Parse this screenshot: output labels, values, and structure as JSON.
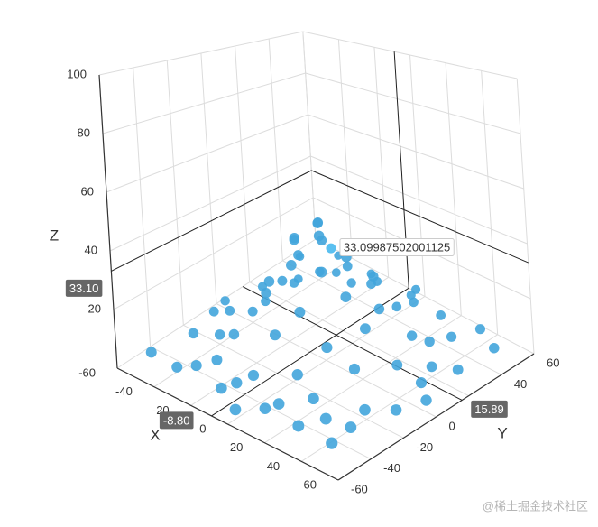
{
  "chart_data": {
    "type": "scatter3D",
    "xlabel": "X",
    "ylabel": "Y",
    "zlabel": "Z",
    "xlim": [
      -60,
      60
    ],
    "ylim": [
      -60,
      60
    ],
    "zlim": [
      0,
      100
    ],
    "xticks": [
      -60,
      -40,
      -20,
      0,
      20,
      40,
      60
    ],
    "yticks": [
      -60,
      -40,
      -20,
      0,
      20,
      40,
      60
    ],
    "zticks": [
      20,
      40,
      60,
      80,
      100
    ],
    "grid": true,
    "color": "#42a5dc",
    "x": [
      0,
      5,
      -5,
      8,
      -8,
      10,
      -10,
      12,
      -12,
      3,
      -3,
      15,
      -15,
      18,
      -18,
      6,
      -6,
      22,
      -22,
      20,
      -20,
      25,
      -25,
      2,
      -2,
      28,
      -28,
      30,
      -30,
      14,
      -14,
      35,
      -35,
      5,
      -5,
      -50,
      -45,
      -52,
      -48,
      -50,
      -40,
      -20,
      0,
      20,
      40,
      52,
      50,
      48,
      52,
      45,
      50,
      30,
      10,
      -10,
      -30,
      -38,
      -42,
      -30,
      35,
      38,
      -45,
      42,
      -12,
      15,
      -55,
      55,
      0,
      0,
      -35,
      32,
      -25,
      26,
      -40,
      44,
      -8,
      8
    ],
    "y": [
      0,
      -5,
      5,
      8,
      -6,
      -10,
      12,
      3,
      -2,
      14,
      -14,
      15,
      -15,
      -5,
      6,
      -20,
      22,
      10,
      -10,
      -20,
      20,
      -2,
      3,
      27,
      -27,
      22,
      -24,
      -15,
      15,
      -32,
      32,
      5,
      -5,
      38,
      -38,
      -50,
      -30,
      -10,
      15,
      40,
      52,
      50,
      52,
      48,
      50,
      45,
      25,
      5,
      -15,
      -35,
      -52,
      -50,
      -48,
      -52,
      -45,
      -48,
      30,
      40,
      38,
      -42,
      -8,
      18,
      45,
      -45,
      0,
      0,
      -55,
      55,
      -25,
      28,
      -38,
      -36,
      8,
      -25,
      -45,
      45
    ],
    "z": [
      50,
      48,
      47,
      42,
      44,
      38,
      37,
      40,
      41,
      39,
      38,
      30,
      29,
      30,
      31,
      26,
      25,
      22,
      21,
      18,
      19,
      20,
      20,
      19,
      18,
      10,
      9,
      12,
      13,
      11,
      12,
      8,
      8,
      7,
      7,
      5,
      6,
      4,
      5,
      6,
      5,
      6,
      4,
      5,
      6,
      5,
      4,
      6,
      5,
      4,
      6,
      5,
      4,
      6,
      5,
      3,
      4,
      7,
      6,
      7,
      6,
      5,
      8,
      6,
      3,
      4,
      3,
      5,
      7,
      7,
      6,
      8,
      5,
      6,
      6,
      7
    ],
    "pointer": {
      "x": {
        "value": -8.8,
        "label": "-8.80"
      },
      "y": 15.89,
      "z": {
        "value": 33.09987502001125,
        "label": "33.10"
      }
    },
    "watermark": "@稀土掘金技术社区"
  }
}
